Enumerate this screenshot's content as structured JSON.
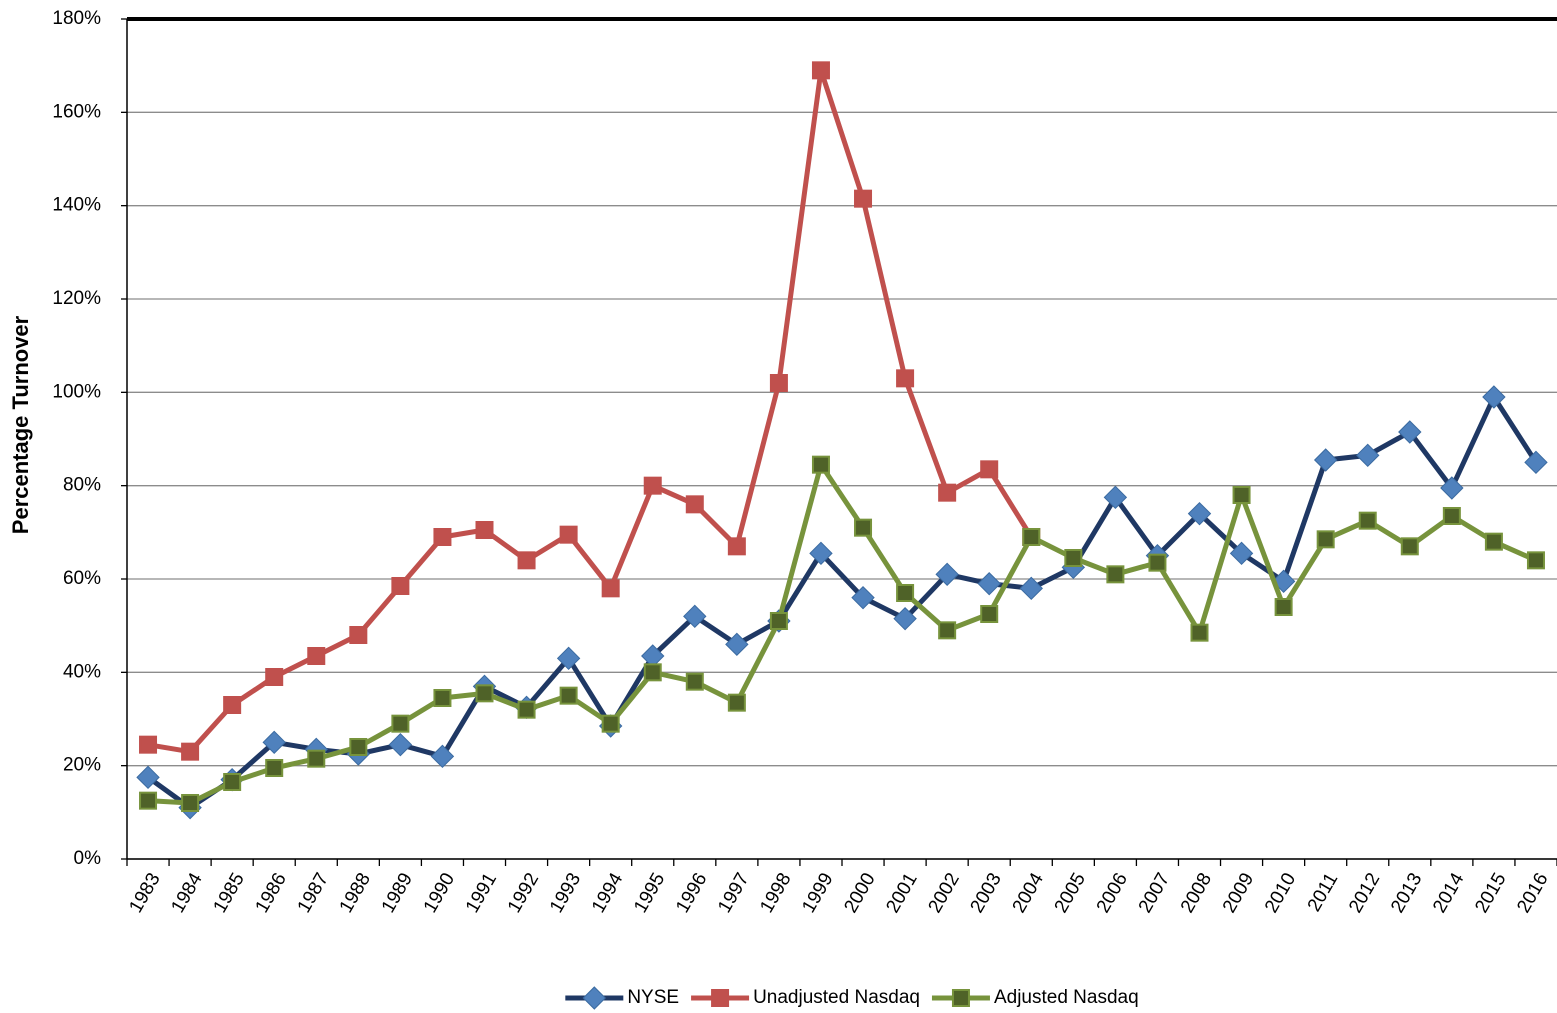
{
  "chart_data": {
    "type": "line",
    "y_label": "Percentage Turnover",
    "categories": [
      "1983",
      "1984",
      "1985",
      "1986",
      "1987",
      "1988",
      "1989",
      "1990",
      "1991",
      "1992",
      "1993",
      "1994",
      "1995",
      "1996",
      "1997",
      "1998",
      "1999",
      "2000",
      "2001",
      "2002",
      "2003",
      "2004",
      "2005",
      "2006",
      "2007",
      "2008",
      "2009",
      "2010",
      "2011",
      "2012",
      "2013",
      "2014",
      "2015",
      "2016"
    ],
    "series": [
      {
        "name": "NYSE",
        "color": "#1f3864",
        "marker_color": "#4f81bd",
        "marker": "diamond",
        "values": [
          17.5,
          11,
          17,
          25,
          23.5,
          22.5,
          24.5,
          22,
          37,
          32.5,
          43,
          28.5,
          43.5,
          52,
          46,
          51,
          65.5,
          56,
          51.5,
          61,
          59,
          58,
          62.5,
          77.5,
          65,
          74,
          65.5,
          59.5,
          85.5,
          86.5,
          91.5,
          79.5,
          99,
          85
        ]
      },
      {
        "name": "Unadjusted Nasdaq",
        "color": "#c0504d",
        "marker_color": "#c0504d",
        "marker": "square",
        "values": [
          24.5,
          23,
          33,
          39,
          43.5,
          48,
          58.5,
          69,
          70.5,
          64,
          69.5,
          58,
          80,
          76,
          67,
          102,
          169,
          141.5,
          103,
          78.5,
          83.5,
          69,
          null,
          null,
          null,
          null,
          null,
          null,
          null,
          null,
          null,
          null,
          null,
          null
        ]
      },
      {
        "name": "Adjusted Nasdaq",
        "color": "#77933c",
        "marker_color": "#4f6228",
        "marker": "square",
        "values": [
          12.5,
          12,
          16.5,
          19.5,
          21.5,
          24,
          29,
          34.5,
          35.5,
          32,
          35,
          29,
          40,
          38,
          33.5,
          51,
          84.5,
          71,
          57,
          49,
          52.5,
          69,
          64.5,
          61,
          63.5,
          48.5,
          78,
          54,
          68.5,
          72.5,
          67,
          73.5,
          68,
          64
        ]
      }
    ],
    "ylim": [
      0,
      180
    ],
    "yticks": [
      {
        "value": 0,
        "label": "0%"
      },
      {
        "value": 20,
        "label": "20%"
      },
      {
        "value": 40,
        "label": "40%"
      },
      {
        "value": 60,
        "label": "60%"
      },
      {
        "value": 80,
        "label": "80%"
      },
      {
        "value": 100,
        "label": "100%"
      },
      {
        "value": 120,
        "label": "120%"
      },
      {
        "value": 140,
        "label": "140%"
      },
      {
        "value": 160,
        "label": "160%"
      },
      {
        "value": 180,
        "label": "180%"
      }
    ],
    "grid": true,
    "legend": "bottom"
  }
}
